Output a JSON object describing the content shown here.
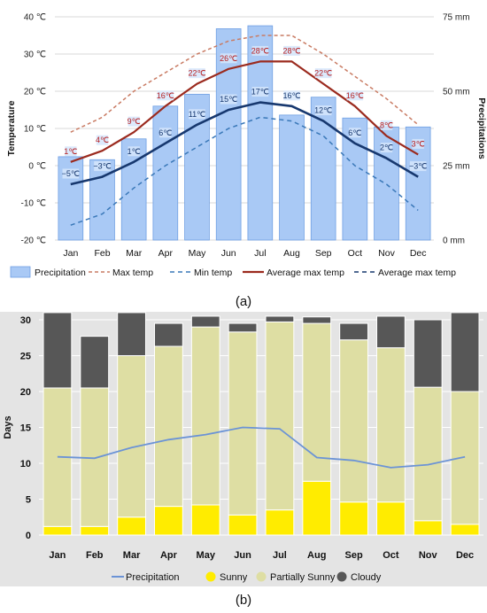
{
  "chart_data": [
    {
      "type": "bar",
      "panel_label": "(a)",
      "title": "",
      "categories": [
        "Jan",
        "Feb",
        "Mar",
        "Apr",
        "May",
        "Jun",
        "Jul",
        "Aug",
        "Sep",
        "Oct",
        "Nov",
        "Dec"
      ],
      "ylabel_left": "Temperature",
      "ylabel_right": "Precipitations",
      "yticks_left": [
        "40 ℃",
        "30 ℃",
        "20 ℃",
        "10 ℃",
        "0 ℃",
        "-10 ℃",
        "-20 ℃"
      ],
      "yticks_right": [
        "75 mm",
        "50 mm",
        "25 mm",
        "0 mm"
      ],
      "ylim_left": [
        -20,
        40
      ],
      "ylim_right": [
        0,
        75
      ],
      "grid": true,
      "legend_position": "bottom",
      "colors": {
        "precip_bar": "#a9c9f5",
        "precip_bar_edge": "#6f9fe3",
        "max_temp": "#c97b63",
        "min_temp": "#3a78b8",
        "avg_max": "#9b2a1e",
        "avg_min": "#17386f",
        "label_red": "#b81e1e",
        "label_blue": "#17386f",
        "label_bg": "#d6e6fb"
      },
      "series": [
        {
          "name": "Precipitation",
          "kind": "bar",
          "axis": "right",
          "values": [
            28,
            27,
            34,
            45,
            49,
            71,
            72,
            42,
            48,
            41,
            38,
            38
          ]
        },
        {
          "name": "Max temp",
          "kind": "dashed-line",
          "axis": "left",
          "values": [
            9,
            13,
            20,
            25,
            30,
            33.5,
            35,
            35,
            30,
            24,
            18,
            11
          ]
        },
        {
          "name": "Min temp",
          "kind": "dashed-line",
          "axis": "left",
          "values": [
            -16,
            -13,
            -6,
            0,
            5,
            10,
            13,
            12,
            8,
            0,
            -5,
            -12
          ]
        },
        {
          "name": "Average max temp",
          "kind": "line",
          "axis": "left",
          "values": [
            1,
            4,
            9,
            16,
            22,
            26,
            28,
            28,
            22,
            16,
            8,
            3
          ],
          "labels": [
            "1℃",
            "4℃",
            "9℃",
            "16℃",
            "22℃",
            "26℃",
            "28℃",
            "28℃",
            "22℃",
            "16℃",
            "8℃",
            "3℃"
          ]
        },
        {
          "name": "Average max temp",
          "kind": "line",
          "axis": "left",
          "values": [
            -5,
            -3,
            1,
            6,
            11,
            15,
            17,
            16,
            12,
            6,
            2,
            -3
          ],
          "labels": [
            "−5℃",
            "−3℃",
            "1℃",
            "6℃",
            "11℃",
            "15℃",
            "17℃",
            "16℃",
            "12℃",
            "6℃",
            "2℃",
            "−3℃"
          ]
        }
      ],
      "legend": [
        "Precipitation",
        "Max temp",
        "Min temp",
        "Average max temp",
        "Average max temp"
      ]
    },
    {
      "type": "bar",
      "panel_label": "(b)",
      "title": "",
      "stacked": true,
      "categories": [
        "Jan",
        "Feb",
        "Mar",
        "Apr",
        "May",
        "Jun",
        "Jul",
        "Aug",
        "Sep",
        "Oct",
        "Nov",
        "Dec"
      ],
      "ylabel": "Days",
      "yticks": [
        "30",
        "25",
        "20",
        "15",
        "10",
        "5",
        "0"
      ],
      "ylim": [
        0,
        30
      ],
      "grid": true,
      "legend_position": "bottom",
      "colors": {
        "sunny": "#ffec00",
        "partially_sunny": "#dedea3",
        "cloudy": "#575757",
        "precipitation": "#6b93d6",
        "background": "#e4e4e4"
      },
      "series": [
        {
          "name": "Sunny",
          "values": [
            1.2,
            1.2,
            2.5,
            4,
            4.2,
            2.8,
            3.5,
            7.5,
            4.6,
            4.6,
            2,
            1.5
          ]
        },
        {
          "name": "Partially Sunny",
          "values": [
            19.3,
            19.3,
            22.5,
            22.3,
            24.8,
            25.5,
            26.2,
            22,
            22.6,
            21.5,
            18.6,
            18.5
          ]
        },
        {
          "name": "Cloudy",
          "values": [
            10.5,
            7.2,
            6,
            3.2,
            1.5,
            1.2,
            0.8,
            0.9,
            2.3,
            4.4,
            9.4,
            11
          ]
        },
        {
          "name": "Precipitation",
          "kind": "line",
          "values": [
            10.9,
            10.7,
            12.2,
            13.3,
            14,
            15,
            14.8,
            10.8,
            10.4,
            9.4,
            9.8,
            10.9
          ]
        }
      ],
      "legend": [
        "Precipitation",
        "Sunny",
        "Partially Sunny",
        "Cloudy"
      ]
    }
  ]
}
